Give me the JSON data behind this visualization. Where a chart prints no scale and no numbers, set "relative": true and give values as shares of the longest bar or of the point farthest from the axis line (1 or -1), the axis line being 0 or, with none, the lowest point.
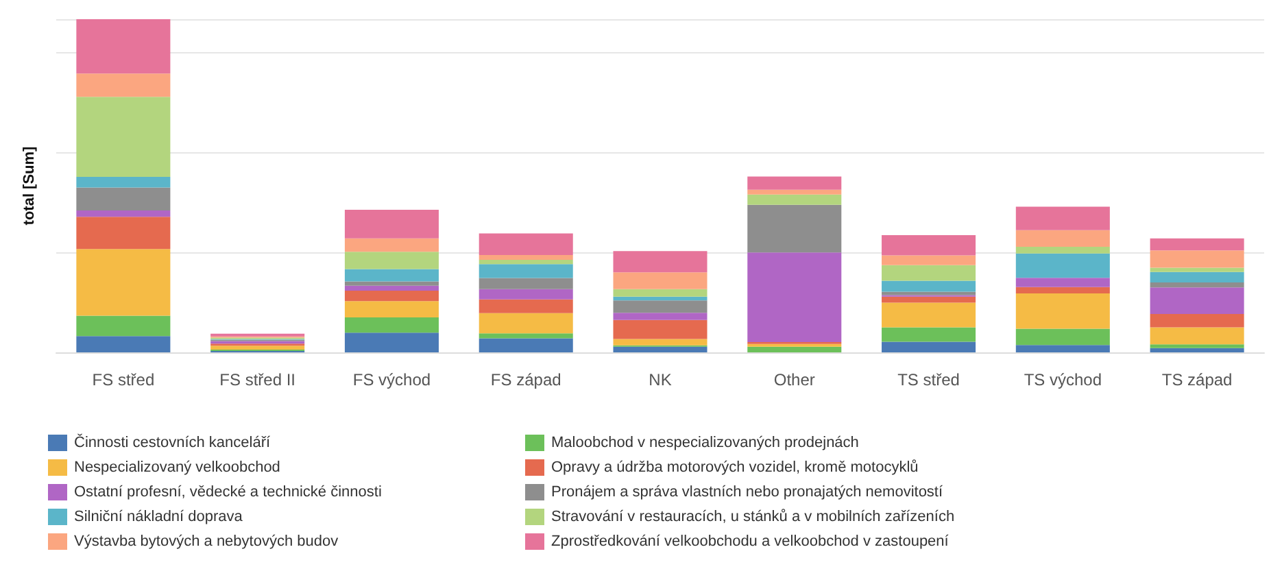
{
  "chart_data": {
    "type": "bar",
    "stacked": true,
    "relative": true,
    "ylabel": "total [Sum]",
    "grid": "y",
    "legend": "bottom",
    "categories": [
      "FS střed",
      "FS střed II",
      "FS východ",
      "FS západ",
      "NK",
      "Other",
      "TS střed",
      "TS východ",
      "TS západ"
    ],
    "series": [
      {
        "name": "Činnosti cestovních kanceláří",
        "color": "#4a7ab5",
        "values": [
          0.049,
          0.004,
          0.059,
          0.042,
          0.017,
          0,
          0.032,
          0.022,
          0.013
        ]
      },
      {
        "name": "Maloobchod v nespecializovaných prodejnách",
        "color": "#6cc05a",
        "values": [
          0.061,
          0.004,
          0.046,
          0.015,
          0.004,
          0.017,
          0.043,
          0.049,
          0.011
        ]
      },
      {
        "name": "Nespecializovaný velkoobchod",
        "color": "#f5bb45",
        "values": [
          0.2,
          0.012,
          0.049,
          0.061,
          0.019,
          0.008,
          0.074,
          0.106,
          0.051
        ]
      },
      {
        "name": "Opravy a údržba motorových vozidel, kromě motocyklů",
        "color": "#e56a4f",
        "values": [
          0.097,
          0.006,
          0.031,
          0.041,
          0.057,
          0.006,
          0.018,
          0.019,
          0.04
        ]
      },
      {
        "name": "Ostatní profesní, vědecké a technické činnosti",
        "color": "#b066c5",
        "values": [
          0.019,
          0.008,
          0.015,
          0.031,
          0.022,
          0.269,
          0.005,
          0.028,
          0.08
        ]
      },
      {
        "name": "Pronájem a správa vlastních nebo pronajatých nemovitostí",
        "color": "#8e8e8e",
        "values": [
          0.069,
          0.004,
          0.013,
          0.033,
          0.037,
          0.143,
          0.01,
          0,
          0.015
        ]
      },
      {
        "name": "Silniční nákladní doprava",
        "color": "#5bb5c9",
        "values": [
          0.032,
          0.002,
          0.037,
          0.042,
          0.011,
          0,
          0.033,
          0.073,
          0.031
        ]
      },
      {
        "name": "Stravování v restauracích, u stánků a v mobilních zařízeních",
        "color": "#b3d57e",
        "values": [
          0.24,
          0.004,
          0.052,
          0.013,
          0.023,
          0.031,
          0.047,
          0.02,
          0.013
        ]
      },
      {
        "name": "Výstavba bytových a nebytových budov",
        "color": "#fba680",
        "values": [
          0.07,
          0.004,
          0.04,
          0.014,
          0.05,
          0.014,
          0.029,
          0.05,
          0.052
        ]
      },
      {
        "name": "Zprostředkování velkoobchodu a velkoobchod v zastoupení",
        "color": "#e6749a",
        "values": [
          0.163,
          0.008,
          0.086,
          0.065,
          0.064,
          0.04,
          0.061,
          0.07,
          0.036
        ]
      }
    ]
  }
}
